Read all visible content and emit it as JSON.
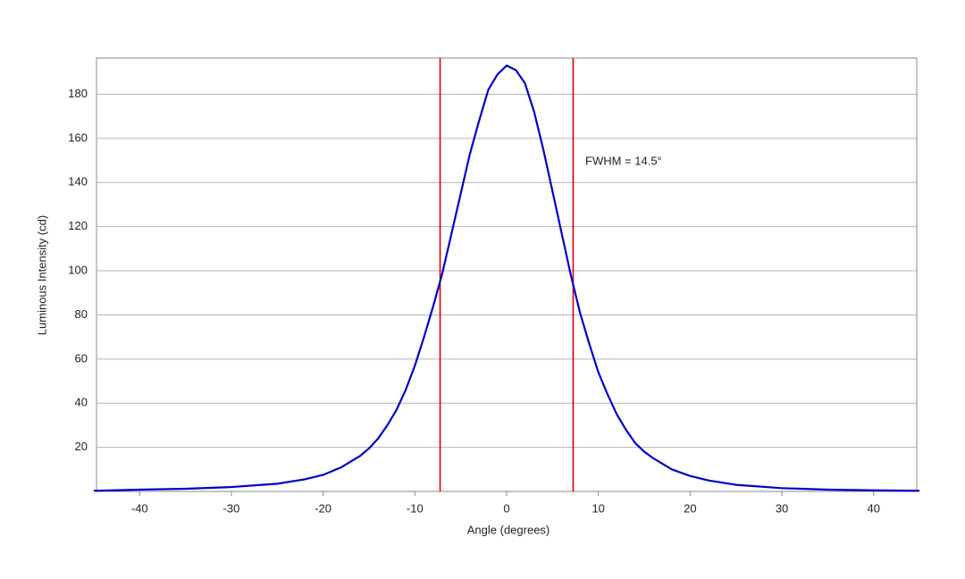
{
  "chart_data": {
    "type": "line",
    "x_label": "Angle (degrees)",
    "y_label": "Luminous Intensity (cd)",
    "annotation": "FWHM = 14.5°",
    "x": [
      -45,
      -40,
      -35,
      -30,
      -25,
      -22,
      -20,
      -18,
      -16,
      -15,
      -14,
      -13,
      -12,
      -11,
      -10,
      -9,
      -8,
      -7,
      -6,
      -5,
      -4,
      -3,
      -2,
      -1,
      0,
      1,
      2,
      3,
      4,
      5,
      6,
      7,
      8,
      9,
      10,
      11,
      12,
      13,
      14,
      15,
      16,
      18,
      20,
      22,
      25,
      30,
      35,
      40,
      45
    ],
    "series": [
      {
        "color": "#0000cc",
        "values": [
          0.3,
          0.8,
          1.2,
          2,
          3.5,
          5.5,
          7.5,
          11,
          16,
          19.5,
          24,
          30,
          37,
          46,
          57,
          70,
          84,
          99,
          117,
          135,
          153,
          168,
          182,
          189,
          193,
          191,
          185,
          172,
          155,
          136,
          117,
          98,
          81,
          67,
          54,
          44,
          35,
          28,
          22,
          18,
          15,
          10,
          7,
          5,
          3,
          1.5,
          0.8,
          0.5,
          0.3
        ]
      }
    ],
    "vlines": [
      -7.25,
      7.25
    ],
    "vline_color": "#e00000",
    "xlim": [
      -44.7,
      44.7
    ],
    "ylim": [
      0,
      196.4
    ],
    "xticks": [
      -40,
      -30,
      -20,
      -10,
      0,
      10,
      20,
      30,
      40
    ],
    "yticks": [
      20,
      40,
      60,
      80,
      100,
      120,
      140,
      160,
      180
    ],
    "grid": true
  }
}
